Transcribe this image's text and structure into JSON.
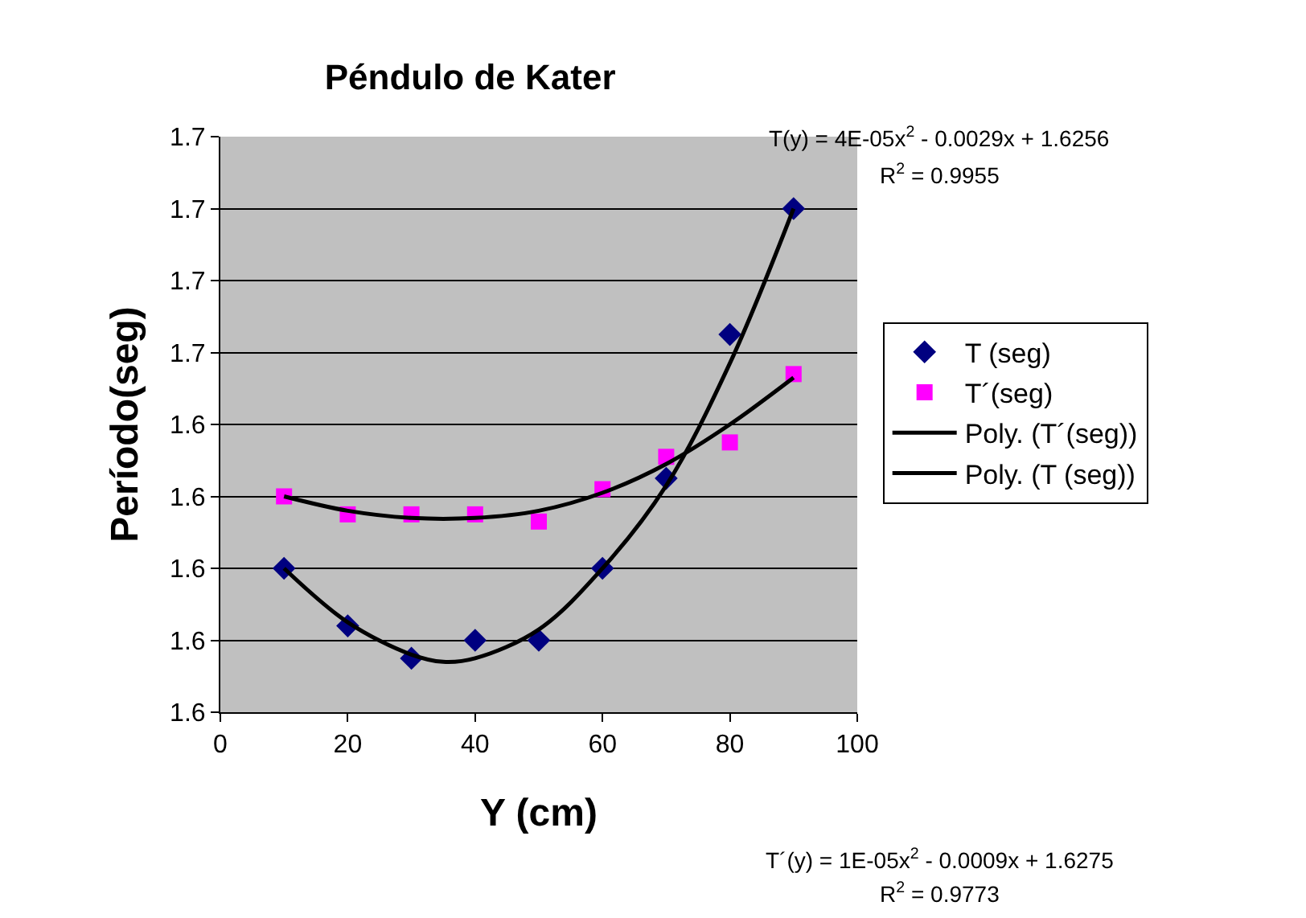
{
  "chart_data": {
    "type": "scatter",
    "title": "Péndulo de Kater",
    "xlabel": "Y (cm)",
    "ylabel": "Período(seg)",
    "xlim": [
      0,
      100
    ],
    "xticks": [
      0,
      20,
      40,
      60,
      80,
      100
    ],
    "ylim": [
      1.56,
      1.72
    ],
    "yticks": [
      {
        "value": 1.56,
        "label": "1.6"
      },
      {
        "value": 1.58,
        "label": "1.6"
      },
      {
        "value": 1.6,
        "label": "1.6"
      },
      {
        "value": 1.62,
        "label": "1.6"
      },
      {
        "value": 1.64,
        "label": "1.6"
      },
      {
        "value": 1.66,
        "label": "1.7"
      },
      {
        "value": 1.68,
        "label": "1.7"
      },
      {
        "value": 1.7,
        "label": "1.7"
      },
      {
        "value": 1.72,
        "label": "1.7"
      }
    ],
    "grid": "y",
    "legend": "right",
    "x": [
      10,
      20,
      30,
      40,
      50,
      60,
      70,
      80,
      90
    ],
    "series": [
      {
        "name": "T (seg)",
        "color": "#000080",
        "marker": "diamond",
        "values": [
          1.6,
          1.584,
          1.575,
          1.58,
          1.58,
          1.6,
          1.625,
          1.665,
          1.7
        ]
      },
      {
        "name": "T´(seg)",
        "color": "#ff00ff",
        "marker": "square",
        "values": [
          1.62,
          1.615,
          1.615,
          1.615,
          1.613,
          1.622,
          1.631,
          1.635,
          1.654
        ]
      },
      {
        "name": "Poly. (T´(seg))",
        "type": "line",
        "color": "#000000",
        "marker": "none",
        "x": [
          10,
          20,
          30,
          40,
          50,
          60,
          70,
          80,
          90
        ],
        "values": [
          1.62,
          1.616,
          1.614,
          1.614,
          1.616,
          1.621,
          1.629,
          1.64,
          1.653
        ]
      },
      {
        "name": "Poly. (T (seg))",
        "type": "line",
        "color": "#000000",
        "marker": "none",
        "x": [
          10,
          20,
          30,
          35,
          40,
          50,
          60,
          70,
          80,
          90
        ],
        "values": [
          1.6,
          1.585,
          1.576,
          1.574,
          1.575,
          1.583,
          1.6,
          1.623,
          1.657,
          1.7
        ]
      }
    ],
    "annotations": [
      "T(y) = 4E-05x$^{2}$ - 0.0029x + 1.6256",
      "R$^{2}$ = 0.9955",
      "T´(y) = 1E-05x$^{2}$ - 0.0009x + 1.6275",
      "R$^{2}$ = 0.9773"
    ]
  }
}
